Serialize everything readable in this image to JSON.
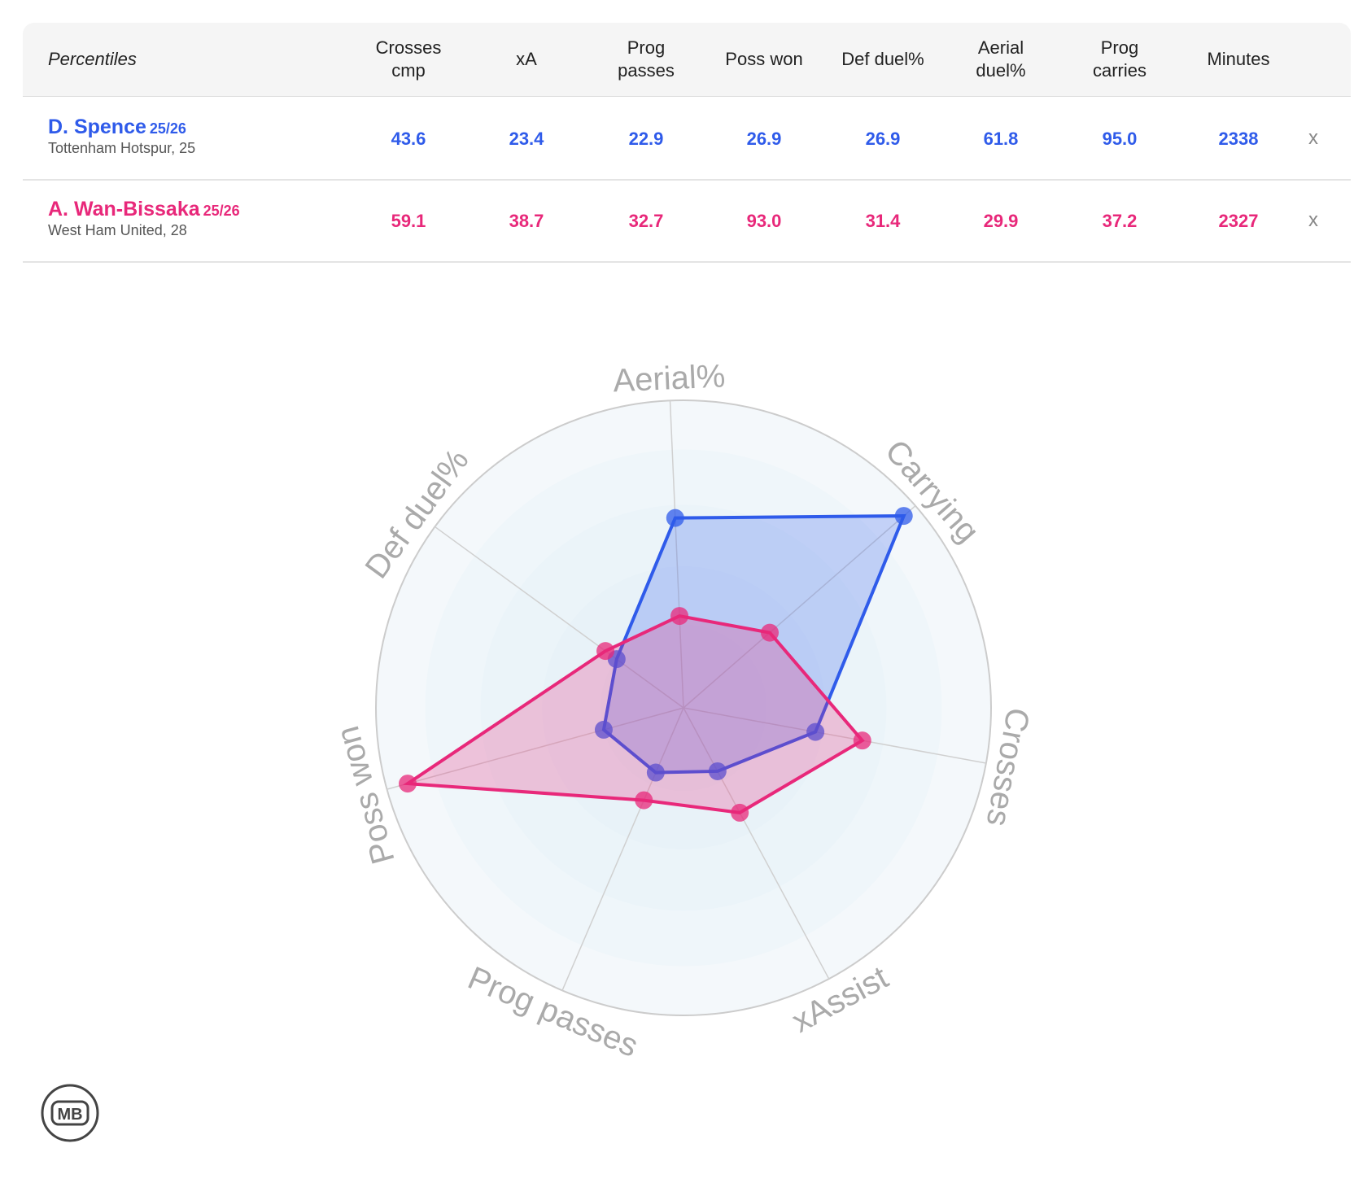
{
  "table": {
    "header": [
      "Percentiles",
      "Crosses\ncmp",
      "xA",
      "Prog\npasses",
      "Poss won",
      "Def duel%",
      "Aerial\nduel%",
      "Prog\ncarries",
      "Minutes"
    ],
    "rows": [
      {
        "name": "D. Spence",
        "season": "25/26",
        "team": "Tottenham Hotspur, 25",
        "color": "#2f5bea",
        "cells": [
          "43.6",
          "23.4",
          "22.9",
          "26.9",
          "26.9",
          "61.8",
          "95.0",
          "2338"
        ],
        "remove": "x"
      },
      {
        "name": "A. Wan-Bissaka",
        "season": "25/26",
        "team": "West Ham United, 28",
        "color": "#e8287a",
        "cells": [
          "59.1",
          "38.7",
          "32.7",
          "93.0",
          "31.4",
          "29.9",
          "37.2",
          "2327"
        ],
        "remove": "x"
      }
    ]
  },
  "chart_data": {
    "type": "radar",
    "axes": [
      "Aerial%",
      "Carrying",
      "Crosses",
      "xAssist",
      "Prog passes",
      "Poss won",
      "Def duel%"
    ],
    "rlim": [
      0,
      100
    ],
    "series": [
      {
        "color": "#2f5bea",
        "values": [
          61.8,
          95.0,
          43.6,
          23.4,
          22.9,
          26.9,
          26.9
        ]
      },
      {
        "color": "#e8287a",
        "values": [
          29.9,
          37.2,
          59.1,
          38.7,
          32.7,
          93.0,
          31.4
        ]
      }
    ]
  },
  "logo": "MB"
}
